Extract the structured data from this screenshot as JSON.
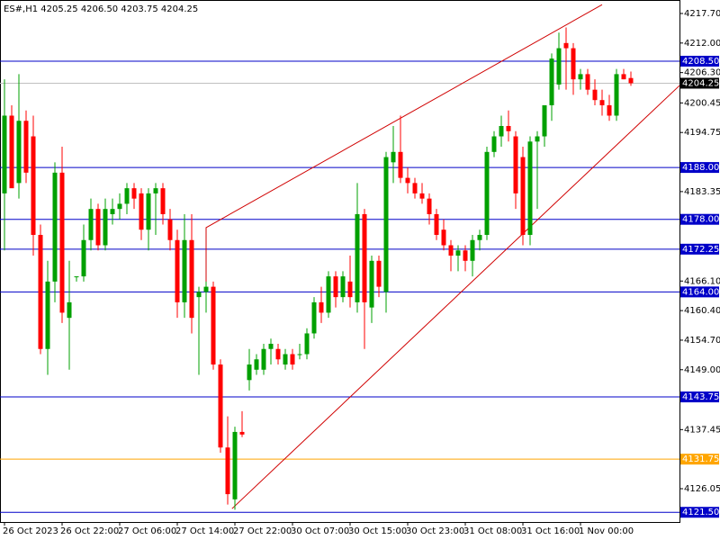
{
  "chart_data": {
    "type": "candlestick",
    "title": "ES#,H1  4205.25 4206.50 4203.75 4204.25",
    "categories": [
      "26 Oct 2023",
      null,
      null,
      null,
      null,
      null,
      null,
      null,
      "26 Oct 22:00",
      null,
      null,
      null,
      null,
      null,
      null,
      null,
      "27 Oct 06:00",
      null,
      null,
      null,
      null,
      null,
      null,
      null,
      "27 Oct 14:00",
      null,
      null,
      null,
      null,
      null,
      null,
      null,
      "27 Oct 22:00",
      null,
      null,
      null,
      null,
      null,
      null,
      null,
      "30 Oct 07:00",
      null,
      null,
      null,
      null,
      null,
      null,
      null,
      "30 Oct 15:00",
      null,
      null,
      null,
      null,
      null,
      null,
      null,
      "30 Oct 23:00",
      null,
      null,
      null,
      null,
      null,
      null,
      null,
      "31 Oct 08:00",
      null,
      null,
      null,
      null,
      null,
      null,
      null,
      "31 Oct 16:00",
      null,
      null,
      null,
      null,
      null,
      null,
      null,
      "1 Nov 00:00",
      null,
      null,
      null,
      null,
      null,
      null,
      null
    ],
    "open": [
      4183,
      4198,
      4185,
      4197,
      4194,
      4175,
      4153,
      4166,
      4187,
      4159,
      4167,
      4167,
      4174,
      4180,
      4173,
      4179,
      4180,
      4181,
      4184,
      4183,
      4176,
      4183,
      4184,
      4178,
      4174,
      4162,
      4174,
      4163,
      4164,
      4165,
      4150,
      4134,
      4124,
      4137,
      4147,
      4149,
      4149,
      4153,
      4153,
      4150,
      4152,
      4152,
      4152,
      4156,
      4162,
      4160,
      4167,
      4163,
      4166,
      4162,
      4179,
      4161,
      4170,
      4164,
      4189,
      4191,
      4186,
      4185,
      4183,
      4182,
      4179,
      4176,
      4173,
      4171,
      4172,
      4170,
      4174,
      4175,
      4191,
      4194,
      4196,
      4194,
      4190,
      4175,
      4193,
      4194,
      4200,
      4204,
      4212,
      4211,
      4205,
      4206,
      4203,
      4201,
      4200,
      4198,
      4206,
      4205.25
    ],
    "high": [
      4205,
      4200,
      4206,
      4199,
      4198,
      4177,
      4170,
      4189,
      4192,
      4170,
      4167,
      4177,
      4182,
      4181,
      4182,
      4182,
      4183,
      4185,
      4185,
      4184,
      4184,
      4185,
      4185,
      4180,
      4176,
      4179,
      4179,
      4165,
      4166,
      4166,
      4151,
      4140,
      4138,
      4141,
      4153,
      4152,
      4154,
      4155,
      4154,
      4153,
      4153,
      4154,
      4157,
      4163,
      4165,
      4168,
      4168,
      4168,
      4171,
      4185,
      4180,
      4171,
      4171,
      4191,
      4196,
      4198,
      4188,
      4186,
      4185,
      4183,
      4180,
      4178,
      4174,
      4173,
      4173,
      4175,
      4176,
      4192,
      4195,
      4198,
      4199,
      4195,
      4192,
      4194,
      4195,
      4200,
      4210,
      4214,
      4215,
      4212,
      4207,
      4207,
      4205,
      4203,
      4202,
      4207,
      4207,
      4206.5
    ],
    "low": [
      4172,
      4185,
      4182,
      4185,
      4171,
      4152,
      4148,
      4162,
      4158,
      4149,
      4166,
      4166,
      4172,
      4172,
      4172,
      4177,
      4178,
      4179,
      4180,
      4174,
      4172,
      4175,
      4177,
      4172,
      4159,
      4159,
      4156,
      4148,
      4160,
      4149,
      4133,
      4123,
      4122,
      4136,
      4145,
      4148,
      4148,
      4150,
      4150,
      4149,
      4149,
      4151,
      4151,
      4155,
      4158,
      4159,
      4161,
      4162,
      4161,
      4160,
      4153,
      4158,
      4163,
      4160,
      4185,
      4185,
      4183,
      4182,
      4181,
      4177,
      4174,
      4172,
      4168,
      4168,
      4168,
      4167,
      4172,
      4174,
      4190,
      4192,
      4193,
      4180,
      4173,
      4173,
      4180,
      4192,
      4197,
      4203,
      4203,
      4202,
      4203,
      4202,
      4200,
      4198,
      4197,
      4197,
      4205,
      4203.75
    ],
    "close": [
      4198,
      4184,
      4197,
      4187,
      4175,
      4153,
      4166,
      4187,
      4160,
      4162,
      4167,
      4174,
      4180,
      4173,
      4180,
      4180,
      4181,
      4184,
      4182,
      4176,
      4183,
      4184,
      4179,
      4174,
      4162,
      4174,
      4159,
      4164,
      4165,
      4150,
      4134,
      4125,
      4137,
      4136.5,
      4150,
      4151,
      4153,
      4154,
      4151,
      4152,
      4150,
      4152,
      4156,
      4162,
      4160,
      4167,
      4163,
      4167,
      4163,
      4179,
      4162,
      4170,
      4165,
      4190,
      4191,
      4186,
      4185,
      4183,
      4182,
      4179,
      4175,
      4173,
      4171,
      4172,
      4170,
      4174,
      4175,
      4191,
      4194,
      4196,
      4195,
      4183,
      4175,
      4193,
      4194,
      4200,
      4209,
      4211,
      4211,
      4205,
      4206,
      4203,
      4201,
      4200,
      4198,
      4206,
      4205,
      4204.25
    ],
    "up_color": "#00a000",
    "down_color": "#ff0000",
    "ylim": [
      4119.63,
      4220.3
    ],
    "yticks": [
      {
        "value": 4217.7,
        "label": "4217.70"
      },
      {
        "value": 4212,
        "label": "4212.00"
      },
      {
        "value": 4206.3,
        "label": "4206.30"
      },
      {
        "value": 4200.45,
        "label": "4200.45"
      },
      {
        "value": 4194.75,
        "label": "4194.75"
      },
      {
        "value": 4183.35,
        "label": "4183.35"
      },
      {
        "value": 4166.1,
        "label": "4166.10"
      },
      {
        "value": 4160.4,
        "label": "4160.40"
      },
      {
        "value": 4154.7,
        "label": "4154.70"
      },
      {
        "value": 4149,
        "label": "4149.00"
      },
      {
        "value": 4137.45,
        "label": "4137.45"
      },
      {
        "value": 4126.05,
        "label": "4126.05"
      }
    ],
    "levels": [
      {
        "value": 4208.5,
        "label": "4208.50",
        "color": "#0000c8",
        "label_color": "#0000c8"
      },
      {
        "value": 4204.25,
        "label": "4204.25",
        "color": "#c0c0c0",
        "label_color": "#000000"
      },
      {
        "value": 4188,
        "label": "4188.00",
        "color": "#0000c8",
        "label_color": "#0000c8"
      },
      {
        "value": 4178,
        "label": "4178.00",
        "color": "#0000c8",
        "label_color": "#0000c8"
      },
      {
        "value": 4172.25,
        "label": "4172.25",
        "color": "#0000c8",
        "label_color": "#0000c8"
      },
      {
        "value": 4164,
        "label": "4164.00",
        "color": "#0000c8",
        "label_color": "#0000c8"
      },
      {
        "value": 4143.75,
        "label": "4143.75",
        "color": "#0000c8",
        "label_color": "#0000c8"
      },
      {
        "value": 4131.75,
        "label": "4131.75",
        "color": "#ffa500",
        "label_color": "#ffa500"
      },
      {
        "value": 4121.5,
        "label": "4121.50",
        "color": "#0000c8",
        "label_color": "#0000c8"
      }
    ],
    "trendlines": [
      {
        "color": "#d00000",
        "x": [
          28,
          28,
          83
        ],
        "y": [
          4163,
          4176.4,
          4219.4
        ]
      },
      {
        "color": "#d00000",
        "x": [
          31.6,
          93.75
        ],
        "y": [
          4122.2,
          4203.8
        ]
      }
    ]
  }
}
